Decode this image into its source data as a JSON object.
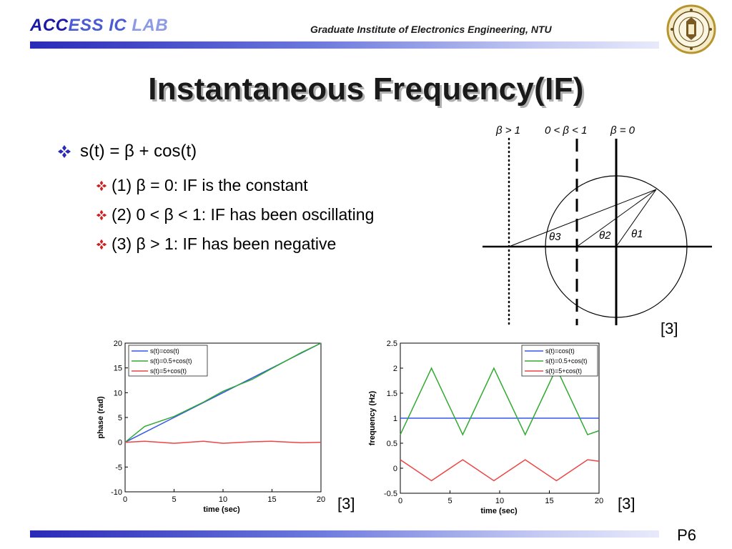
{
  "header": {
    "brand_part1": "ACC",
    "brand_part2": "ESS IC",
    "brand_part3": " LAB",
    "institute": "Graduate Institute of Electronics Engineering, NTU",
    "bar_colors": [
      "#2a2ab8",
      "#6b78dc",
      "#c2c8f2"
    ]
  },
  "title": "Instantaneous Frequency(IF)",
  "bullets": {
    "main": "s(t) = β + cos(t)",
    "sub": [
      "(1) β = 0: IF is the constant",
      "(2) 0 < β < 1: IF has been oscillating",
      "(3) β > 1: IF has been negative"
    ]
  },
  "diagram": {
    "labels": [
      "β > 1",
      "0 < β < 1",
      "β = 0"
    ],
    "angles": [
      "θ3",
      "θ2",
      "θ1"
    ],
    "citation": "[3]"
  },
  "phase_chart": {
    "legend": [
      "s(t)=cos(t)",
      "s(t)=0.5+cos(t)",
      "s(t)=5+cos(t)"
    ],
    "xlabel": "time (sec)",
    "ylabel": "phase (rad)",
    "xticks": [
      "0",
      "5",
      "10",
      "15",
      "20"
    ],
    "yticks": [
      "20",
      "15",
      "10",
      "5",
      "0",
      "-5",
      "-10"
    ],
    "citation": "[3]"
  },
  "freq_chart": {
    "legend": [
      "s(t)=cos(t)",
      "s(t)=0.5+cos(t)",
      "s(t)=5+cos(t)"
    ],
    "xlabel": "time (sec)",
    "ylabel": "frequency (Hz)",
    "xticks": [
      "0",
      "5",
      "10",
      "15",
      "20"
    ],
    "yticks": [
      "2.5",
      "2",
      "1.5",
      "1",
      "0.5",
      "0",
      "-0.5"
    ],
    "citation": "[3]"
  },
  "chart_data": [
    {
      "type": "line",
      "xlabel": "time (sec)",
      "ylabel": "phase (rad)",
      "xlim": [
        0,
        20
      ],
      "ylim": [
        -10,
        20
      ],
      "series": [
        {
          "name": "s(t)=cos(t)",
          "color": "#3355ee",
          "x": [
            0,
            5,
            10,
            15,
            20
          ],
          "y": [
            0,
            5,
            10,
            15,
            20
          ]
        },
        {
          "name": "s(t)=0.5+cos(t)",
          "color": "#33aa33",
          "x": [
            0,
            2,
            5,
            8,
            10,
            13,
            15,
            18,
            20
          ],
          "y": [
            0,
            3.2,
            5.2,
            8.1,
            10.3,
            12.7,
            14.9,
            18.1,
            20
          ]
        },
        {
          "name": "s(t)=5+cos(t)",
          "color": "#ee4444",
          "x": [
            0,
            2,
            5,
            8,
            10,
            13,
            15,
            18,
            20
          ],
          "y": [
            0,
            0.2,
            -0.2,
            0.2,
            -0.2,
            0.1,
            0.2,
            -0.1,
            0
          ]
        }
      ]
    },
    {
      "type": "line",
      "xlabel": "time (sec)",
      "ylabel": "frequency (Hz)",
      "xlim": [
        0,
        20
      ],
      "ylim": [
        -0.5,
        2.5
      ],
      "series": [
        {
          "name": "s(t)=cos(t)",
          "color": "#3355ee",
          "x": [
            0,
            20
          ],
          "y": [
            1,
            1
          ]
        },
        {
          "name": "s(t)=0.5+cos(t)",
          "color": "#33aa33",
          "x": [
            0,
            3.14,
            6.28,
            9.42,
            12.57,
            15.71,
            18.85,
            20
          ],
          "y": [
            0.67,
            2.0,
            0.67,
            2.0,
            0.67,
            2.0,
            0.67,
            0.75
          ]
        },
        {
          "name": "s(t)=5+cos(t)",
          "color": "#ee4444",
          "x": [
            0,
            3.14,
            6.28,
            9.42,
            12.57,
            15.71,
            18.85,
            20
          ],
          "y": [
            0.17,
            -0.25,
            0.17,
            -0.25,
            0.17,
            -0.25,
            0.17,
            0.14
          ]
        }
      ]
    }
  ],
  "page_number": "P6"
}
